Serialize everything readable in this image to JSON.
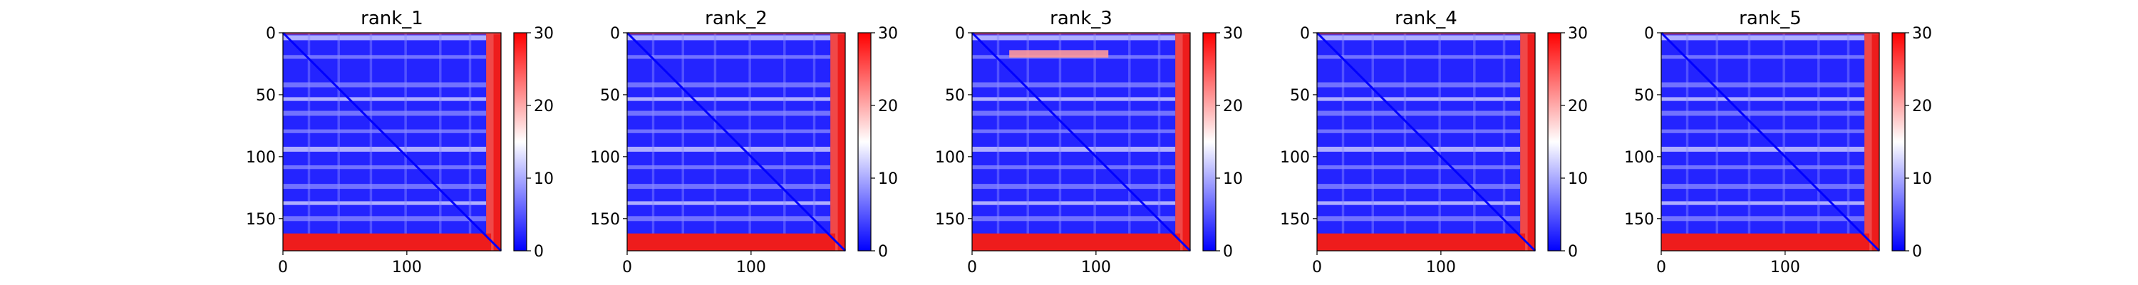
{
  "chart_data": [
    {
      "type": "heatmap",
      "title": "rank_1",
      "xlim": [
        0,
        176
      ],
      "ylim": [
        176,
        0
      ],
      "x_ticks": [
        0,
        100
      ],
      "y_ticks": [
        0,
        50,
        100,
        150
      ],
      "colorbar": {
        "min": 0,
        "max": 30,
        "ticks": [
          0,
          10,
          20,
          30
        ],
        "colors": [
          "#0000ff",
          "#ffffff",
          "#ff0000"
        ]
      },
      "matrix_size": 176,
      "edge_rows": 12,
      "grid": false
    },
    {
      "type": "heatmap",
      "title": "rank_2",
      "xlim": [
        0,
        176
      ],
      "ylim": [
        176,
        0
      ],
      "x_ticks": [
        0,
        100
      ],
      "y_ticks": [
        0,
        50,
        100,
        150
      ],
      "colorbar": {
        "min": 0,
        "max": 30,
        "ticks": [
          0,
          10,
          20,
          30
        ],
        "colors": [
          "#0000ff",
          "#ffffff",
          "#ff0000"
        ]
      },
      "matrix_size": 176,
      "edge_rows": 12,
      "grid": false
    },
    {
      "type": "heatmap",
      "title": "rank_3",
      "xlim": [
        0,
        176
      ],
      "ylim": [
        176,
        0
      ],
      "x_ticks": [
        0,
        100
      ],
      "y_ticks": [
        0,
        50,
        100,
        150
      ],
      "colorbar": {
        "min": 0,
        "max": 30,
        "ticks": [
          0,
          10,
          20,
          30
        ],
        "colors": [
          "#0000ff",
          "#ffffff",
          "#ff0000"
        ]
      },
      "matrix_size": 176,
      "edge_rows": 12,
      "grid": false
    },
    {
      "type": "heatmap",
      "title": "rank_4",
      "xlim": [
        0,
        176
      ],
      "ylim": [
        176,
        0
      ],
      "x_ticks": [
        0,
        100
      ],
      "y_ticks": [
        0,
        50,
        100,
        150
      ],
      "colorbar": {
        "min": 0,
        "max": 30,
        "ticks": [
          0,
          10,
          20,
          30
        ],
        "colors": [
          "#0000ff",
          "#ffffff",
          "#ff0000"
        ]
      },
      "matrix_size": 176,
      "edge_rows": 12,
      "grid": false
    },
    {
      "type": "heatmap",
      "title": "rank_5",
      "xlim": [
        0,
        176
      ],
      "ylim": [
        176,
        0
      ],
      "x_ticks": [
        0,
        100
      ],
      "y_ticks": [
        0,
        50,
        100,
        150
      ],
      "colorbar": {
        "min": 0,
        "max": 30,
        "ticks": [
          0,
          10,
          20,
          30
        ],
        "colors": [
          "#0000ff",
          "#ffffff",
          "#ff0000"
        ]
      },
      "matrix_size": 176,
      "edge_rows": 12,
      "grid": false
    }
  ]
}
